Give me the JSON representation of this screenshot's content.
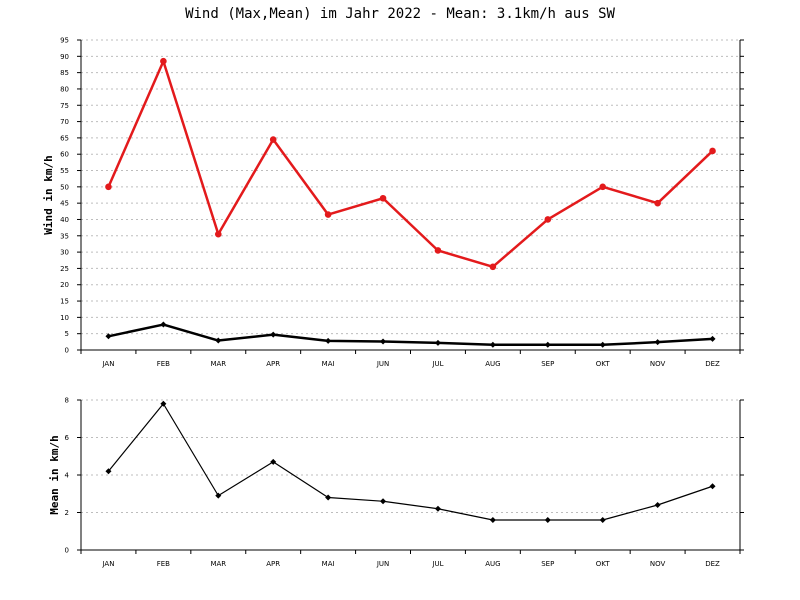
{
  "chart_data": [
    {
      "type": "line",
      "title": "Wind (Max,Mean) im Jahr 2022 - Mean: 3.1km/h aus SW",
      "ylabel": "Wind in km/h",
      "xlabel": "",
      "categories": [
        "JAN",
        "FEB",
        "MAR",
        "APR",
        "MAI",
        "JUN",
        "JUL",
        "AUG",
        "SEP",
        "OKT",
        "NOV",
        "DEZ"
      ],
      "ylim": [
        0,
        95
      ],
      "ytick_step": 5,
      "grid": true,
      "series": [
        {
          "color": "#e31a1c",
          "marker": "circle",
          "values": [
            50.0,
            88.5,
            35.5,
            64.5,
            41.5,
            46.5,
            30.5,
            25.5,
            40.0,
            50.0,
            45.0,
            61.0
          ]
        },
        {
          "color": "#000000",
          "marker": "diamond",
          "values": [
            4.2,
            7.8,
            2.9,
            4.7,
            2.8,
            2.6,
            2.2,
            1.6,
            1.6,
            1.6,
            2.4,
            3.4
          ]
        }
      ]
    },
    {
      "type": "line",
      "ylabel": "Mean in km/h",
      "xlabel": "",
      "categories": [
        "JAN",
        "FEB",
        "MAR",
        "APR",
        "MAI",
        "JUN",
        "JUL",
        "AUG",
        "SEP",
        "OKT",
        "NOV",
        "DEZ"
      ],
      "ylim": [
        0,
        8
      ],
      "ytick_step": 2,
      "grid": true,
      "series": [
        {
          "color": "#000000",
          "marker": "diamond",
          "values": [
            4.2,
            7.8,
            2.9,
            4.7,
            2.8,
            2.6,
            2.2,
            1.6,
            1.6,
            1.6,
            2.4,
            3.4
          ]
        }
      ]
    }
  ]
}
